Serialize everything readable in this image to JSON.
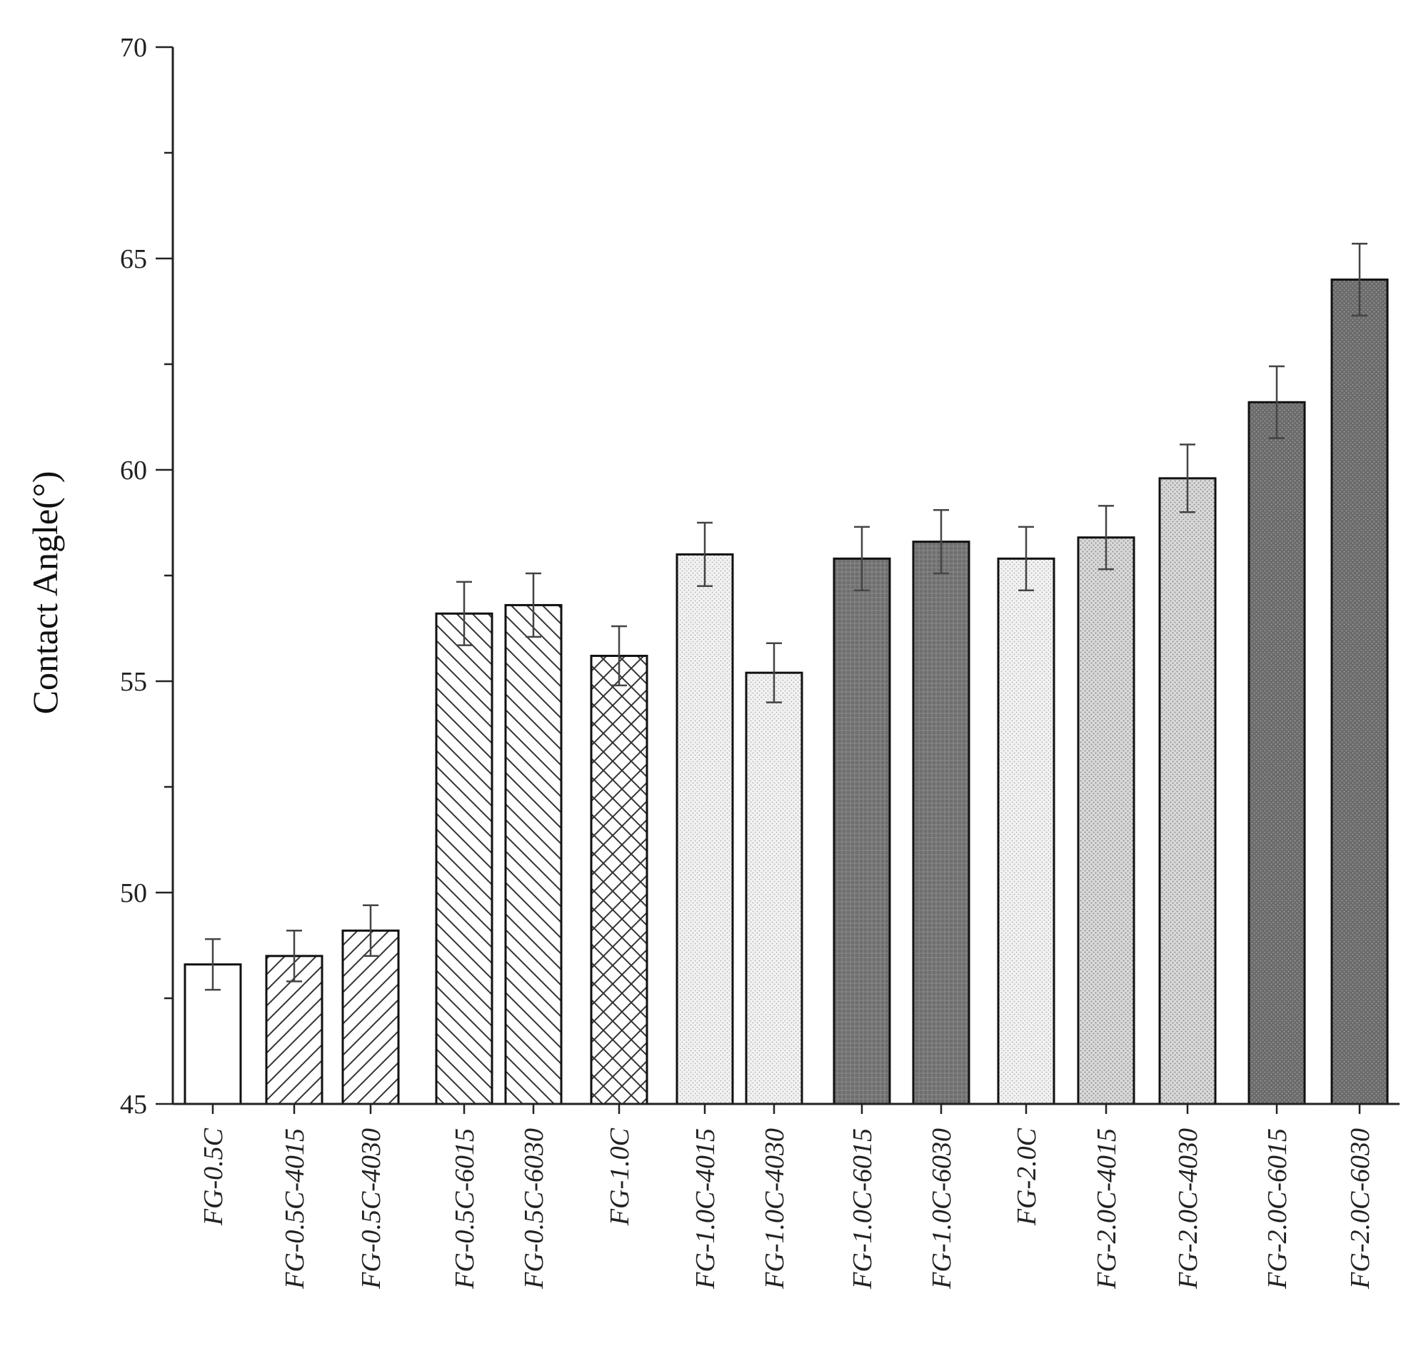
{
  "chart_data": {
    "type": "bar",
    "title": "",
    "xlabel": "",
    "ylabel": "Contact Angle(°)",
    "ylim": [
      45,
      70
    ],
    "yticks": [
      45,
      50,
      55,
      60,
      65,
      70
    ],
    "grid": false,
    "legend": "none",
    "error_bars": true,
    "categories": [
      "FG-0.5C",
      "FG-0.5C-4015",
      "FG-0.5C-4030",
      "FG-0.5C-6015",
      "FG-0.5C-6030",
      "FG-1.0C",
      "FG-1.0C-4015",
      "FG-1.0C-4030",
      "FG-1.0C-6015",
      "FG-1.0C-6030",
      "FG-2.0C",
      "FG-2.0C-4015",
      "FG-2.0C-4030",
      "FG-2.0C-6015",
      "FG-2.0C-6030"
    ],
    "values": [
      48.3,
      48.5,
      49.1,
      56.6,
      56.8,
      55.6,
      58.0,
      55.2,
      57.9,
      58.3,
      57.9,
      58.4,
      59.8,
      61.6,
      64.5
    ],
    "errors": [
      0.6,
      0.6,
      0.6,
      0.75,
      0.75,
      0.7,
      0.75,
      0.7,
      0.75,
      0.75,
      0.75,
      0.75,
      0.8,
      0.85,
      0.85
    ],
    "patterns": [
      "solid-white",
      "diag-up",
      "diag-up",
      "diag-down",
      "diag-down",
      "crosshatch",
      "light-dots",
      "light-dots",
      "dark-grid",
      "dark-grid",
      "light-dots",
      "medium-dots",
      "medium-dots",
      "dark-dots",
      "dark-dots"
    ],
    "colors": {
      "axis": "#222222",
      "bar_outline": "#111111",
      "hatch_line": "#333333",
      "light_dots_bg": "#f2f2f2",
      "medium_dots_bg": "#d9d9d9",
      "dark_bg": "#6e6e6e",
      "error_bar": "#444444"
    }
  }
}
